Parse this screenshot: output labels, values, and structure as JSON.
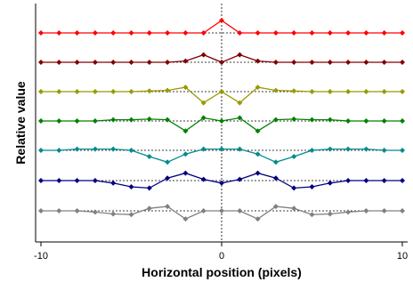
{
  "chart_data": {
    "type": "line",
    "title": "",
    "xlabel": "Horizontal position (pixels)",
    "ylabel": "Relative value",
    "xlim": [
      -10,
      10
    ],
    "x_ticks": [
      "-10",
      "0",
      "10"
    ],
    "y_ticks": [],
    "grid": false,
    "legend": "none",
    "x": [
      -10,
      -9,
      -8,
      -7,
      -6,
      -5,
      -4,
      -3,
      -2,
      -1,
      0,
      1,
      2,
      3,
      4,
      5,
      6,
      7,
      8,
      9,
      10
    ],
    "baseline_style": "dotted",
    "series": [
      {
        "color": "#ff0000",
        "baseline": 0,
        "values": [
          0,
          0,
          0,
          0,
          0,
          0,
          0,
          0,
          0,
          0,
          1.0,
          0,
          0,
          0,
          0,
          0,
          0,
          0,
          0,
          0,
          0
        ]
      },
      {
        "color": "#800000",
        "baseline": 0,
        "values": [
          0,
          0,
          0,
          0,
          0,
          0,
          0,
          0,
          0.1,
          0.6,
          0,
          0.6,
          0.1,
          0,
          0,
          0,
          0,
          0,
          0,
          0,
          0
        ]
      },
      {
        "color": "#999900",
        "baseline": 0,
        "values": [
          0,
          0,
          0,
          0,
          0,
          0,
          0.05,
          0.1,
          0.35,
          -0.9,
          0,
          -0.9,
          0.35,
          0.1,
          0.05,
          0,
          0,
          0,
          0,
          0,
          0
        ]
      },
      {
        "color": "#008000",
        "baseline": 0,
        "values": [
          0,
          0,
          0,
          0,
          0.1,
          0.1,
          0.15,
          0.1,
          -0.8,
          0.25,
          0,
          0.25,
          -0.8,
          0.1,
          0.15,
          0.1,
          0.1,
          0,
          0,
          0,
          0
        ]
      },
      {
        "color": "#008b8b",
        "baseline": 0,
        "values": [
          0,
          0,
          0.1,
          0.1,
          0.1,
          0,
          -0.5,
          -0.95,
          -0.3,
          0.1,
          0.1,
          0.1,
          -0.3,
          -0.95,
          -0.5,
          0,
          0.1,
          0.1,
          0.1,
          0,
          0
        ]
      },
      {
        "color": "#000080",
        "baseline": 0,
        "values": [
          0,
          0,
          0,
          0,
          -0.2,
          -0.5,
          -0.6,
          0.2,
          0.6,
          0.1,
          -0.2,
          0.1,
          0.6,
          0.2,
          -0.6,
          -0.5,
          -0.2,
          0,
          0,
          0,
          0
        ]
      },
      {
        "color": "#808080",
        "baseline": 0,
        "values": [
          0,
          0,
          0,
          -0.1,
          -0.25,
          -0.3,
          0.2,
          0.35,
          -0.65,
          0,
          0,
          0,
          -0.65,
          0.35,
          0.2,
          -0.3,
          -0.25,
          -0.1,
          0,
          0,
          0
        ]
      }
    ]
  }
}
